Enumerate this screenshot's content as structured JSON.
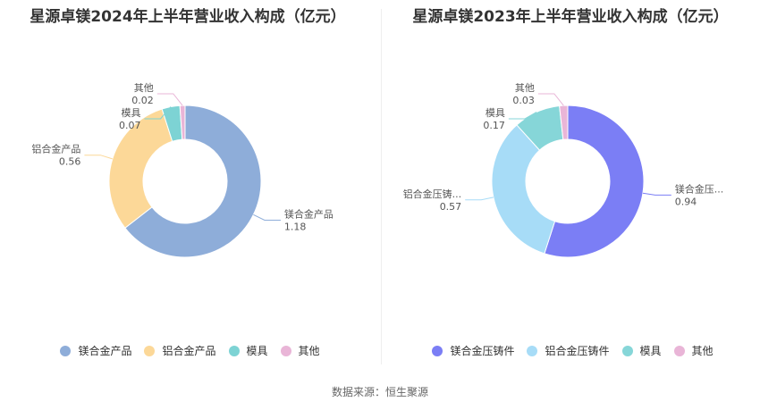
{
  "chart_data": [
    {
      "type": "pie",
      "title": "星源卓镁2024年上半年营业收入构成（亿元）",
      "donut": true,
      "categories": [
        "镁合金产品",
        "铝合金产品",
        "模具",
        "其他"
      ],
      "values": [
        1.18,
        0.56,
        0.07,
        0.02
      ],
      "value_labels": [
        "1.18",
        "0.56",
        "0.07",
        "0.02"
      ],
      "slice_labels": [
        "镁合金产品",
        "铝合金产品",
        "模具",
        "其他"
      ],
      "colors": [
        "#8eadd9",
        "#fcd898",
        "#7dd3d4",
        "#e9b5d7"
      ],
      "legend": [
        "镁合金产品",
        "铝合金产品",
        "模具",
        "其他"
      ],
      "legend_position": "bottom"
    },
    {
      "type": "pie",
      "title": "星源卓镁2023年上半年营业收入构成（亿元）",
      "donut": true,
      "categories": [
        "镁合金压铸件",
        "铝合金压铸件",
        "模具",
        "其他"
      ],
      "values": [
        0.94,
        0.57,
        0.17,
        0.03
      ],
      "value_labels": [
        "0.94",
        "0.57",
        "0.17",
        "0.03"
      ],
      "slice_labels": [
        "镁合金压...",
        "铝合金压铸...",
        "模具",
        "其他"
      ],
      "colors": [
        "#7b7ef5",
        "#a7dcf7",
        "#86d6d8",
        "#e9b5d7"
      ],
      "legend": [
        "镁合金压铸件",
        "铝合金压铸件",
        "模具",
        "其他"
      ],
      "legend_position": "bottom"
    }
  ],
  "source": "数据来源：恒生聚源"
}
